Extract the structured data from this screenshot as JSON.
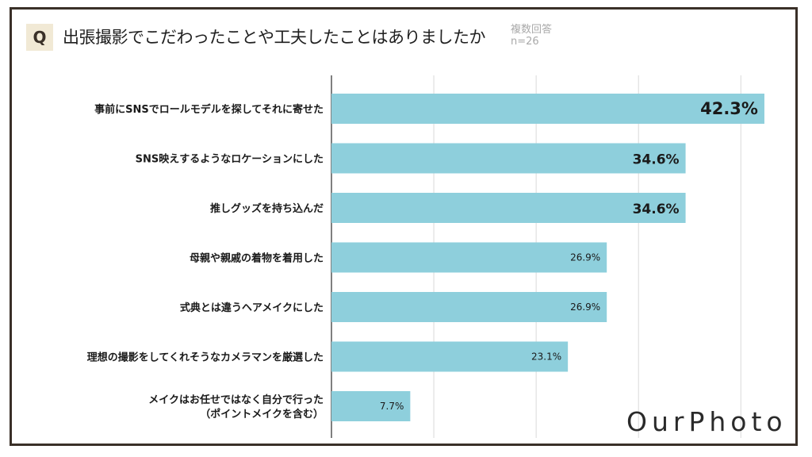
{
  "header": {
    "q_label": "Q",
    "title": "出張撮影でこだわったことや工夫したことはありましたか",
    "answer_type": "複数回答",
    "sample_size": "n=26"
  },
  "colors": {
    "bar": "#8ecfdc",
    "frame": "#3a3028",
    "badge_bg": "#f1e9d5",
    "grid": "#d9d9d9",
    "axis": "#555555",
    "label_text": "#1a1a1a"
  },
  "chart_data": {
    "type": "bar",
    "orientation": "horizontal",
    "categories": [
      [
        "事前にSNSでロールモデルを探してそれに寄せた"
      ],
      [
        "SNS映えするようなロケーションにした"
      ],
      [
        "推しグッズを持ち込んだ"
      ],
      [
        "母親や親戚の着物を着用した"
      ],
      [
        "式典とは違うヘアメイクにした"
      ],
      [
        "理想の撮影をしてくれそうなカメラマンを厳選した"
      ],
      [
        "メイクはお任せではなく自分で行った",
        "（ポイントメイクを含む）"
      ]
    ],
    "values": [
      42.3,
      34.6,
      34.6,
      26.9,
      26.9,
      23.1,
      7.7
    ],
    "value_labels": [
      "42.3%",
      "34.6%",
      "34.6%",
      "26.9%",
      "26.9%",
      "23.1%",
      "7.7%"
    ],
    "xlim": [
      0,
      43
    ],
    "grid": true
  },
  "logo": {
    "text": "OurPhoto"
  }
}
